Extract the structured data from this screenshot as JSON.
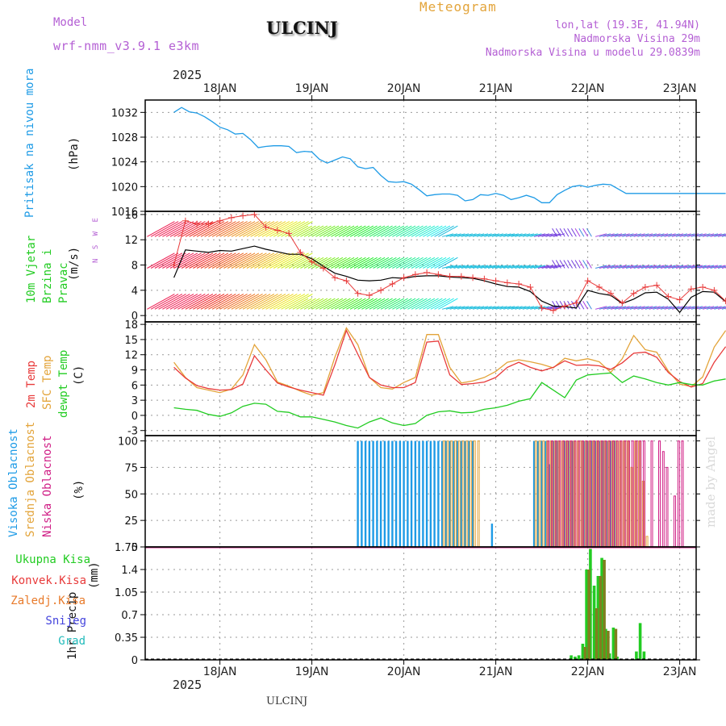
{
  "header": {
    "title": "Meteogram",
    "station": "ULCINJ",
    "model_label": "Model",
    "model_name": "wrf-nmm_v3.9.1 e3km",
    "coords": "lon,lat (19.3E, 41.94N)",
    "elevation": "Nadmorska Visina 29m",
    "model_elevation": "Nadmorska Visina u modelu 29.0839m",
    "year_top": "2025",
    "year_bottom": "2025",
    "footer_station": "ULCINJ",
    "credit": "made by Angel"
  },
  "colors": {
    "pressure": "#1e9be6",
    "temp2m": "#e83a3a",
    "sfc": "#e3a43a",
    "dewpt": "#22cc22",
    "high_cloud": "#1e9be6",
    "mid_cloud": "#e3a43a",
    "low_cloud": "#d01f86",
    "total_precip": "#22cc22",
    "conv_precip": "#e83a3a",
    "grid_precip": "#e87a2a",
    "snow": "#4444dd",
    "graupel": "#22bbbb",
    "model_purple": "#b45fd4",
    "title_gold": "#e3a43a"
  },
  "chart_data": [
    {
      "id": "pressure",
      "type": "line",
      "title": "Pritisak na nivou mora",
      "ylabel": "(hPa)",
      "ylim": [
        1016,
        1034
      ],
      "yticks": [
        1016,
        1020,
        1024,
        1028,
        1032
      ],
      "x": [
        0,
        2,
        4,
        6,
        8,
        10,
        12,
        14,
        16,
        18,
        20,
        22,
        24,
        26,
        28,
        30,
        32,
        34,
        36,
        38,
        40,
        42,
        44,
        46,
        48,
        50,
        52,
        54,
        56,
        58,
        60,
        62,
        64,
        66,
        68,
        70,
        72,
        74,
        76,
        78,
        80,
        82,
        84,
        86,
        88,
        90,
        92,
        94,
        96,
        98,
        100,
        102,
        104,
        106,
        108,
        110,
        112,
        114,
        116,
        118,
        120,
        122,
        124,
        126,
        128,
        130,
        132,
        134,
        136,
        138,
        140,
        142,
        144
      ],
      "series": [
        {
          "name": "MSLP",
          "values": [
            1032.0,
            1032.8,
            1032.1,
            1031.9,
            1031.3,
            1030.5,
            1029.6,
            1029.2,
            1028.5,
            1028.6,
            1027.6,
            1026.3,
            1026.5,
            1026.6,
            1026.6,
            1026.5,
            1025.5,
            1025.7,
            1025.6,
            1024.4,
            1023.8,
            1024.3,
            1024.8,
            1024.5,
            1023.2,
            1022.9,
            1023.1,
            1021.8,
            1020.8,
            1020.7,
            1020.8,
            1020.4,
            1019.5,
            1018.5,
            1018.7,
            1018.8,
            1018.8,
            1018.6,
            1017.7,
            1017.9,
            1018.7,
            1018.6,
            1018.9,
            1018.6,
            1017.9,
            1018.2,
            1018.6,
            1018.2,
            1017.4,
            1017.4,
            1018.7,
            1019.4,
            1020.0,
            1020.2,
            1019.9,
            1020.2,
            1020.4,
            1020.3,
            1019.6,
            1018.9,
            1018.9,
            1018.9,
            1018.9,
            1018.9,
            1018.9,
            1018.9,
            1018.9,
            1018.9,
            1018.9,
            1018.9,
            1018.9,
            1018.9,
            1018.9
          ]
        }
      ]
    },
    {
      "id": "wind",
      "type": "line",
      "title": "10m Vjetar Brzina i Pravac",
      "ylabel": "(m/s)",
      "ylim": [
        -1,
        16.5
      ],
      "yticks": [
        0,
        4,
        8,
        12,
        16
      ],
      "direction_key": "N S W E",
      "barb_rows": [
        1,
        7.5,
        12.5
      ],
      "x": [
        0,
        3,
        6,
        9,
        12,
        15,
        18,
        21,
        24,
        27,
        30,
        33,
        36,
        39,
        42,
        45,
        48,
        51,
        54,
        57,
        60,
        63,
        66,
        69,
        72,
        75,
        78,
        81,
        84,
        87,
        90,
        93,
        96,
        99,
        102,
        105,
        108,
        111,
        114,
        117,
        120,
        123,
        126,
        129,
        132,
        135,
        138,
        141,
        144
      ],
      "series": [
        {
          "name": "Speed",
          "values": [
            6.0,
            10.4,
            10.2,
            10.0,
            10.3,
            10.2,
            10.6,
            11.0,
            10.5,
            10.1,
            9.7,
            9.7,
            9.0,
            7.8,
            6.7,
            6.2,
            5.6,
            5.5,
            5.6,
            6.0,
            5.9,
            6.2,
            6.3,
            6.3,
            6.1,
            6.0,
            5.9,
            5.5,
            5.0,
            4.6,
            4.5,
            3.8,
            2.3,
            1.5,
            1.4,
            1.2,
            4.0,
            3.5,
            3.2,
            1.9,
            2.6,
            3.6,
            3.7,
            2.6,
            0.5,
            2.9,
            3.8,
            3.7,
            2.2
          ]
        },
        {
          "name": "Gust",
          "values": [
            8.0,
            15.0,
            14.5,
            14.5,
            15.0,
            15.5,
            15.8,
            16.0,
            14.0,
            13.5,
            13.0,
            10.0,
            8.5,
            7.5,
            6.0,
            5.5,
            3.5,
            3.2,
            4.0,
            5.0,
            6.0,
            6.5,
            6.8,
            6.5,
            6.2,
            6.2,
            6.0,
            5.8,
            5.5,
            5.2,
            5.0,
            4.5,
            1.2,
            0.8,
            1.5,
            2.0,
            5.5,
            4.5,
            3.5,
            2.0,
            3.5,
            4.5,
            4.8,
            3.0,
            2.5,
            4.2,
            4.5,
            4.0,
            2.3
          ]
        }
      ]
    },
    {
      "id": "temperature",
      "type": "line",
      "title": "2m Temp / SFC Temp / dewpt Temp",
      "ylabel": "(C)",
      "ylim": [
        -4,
        18.5
      ],
      "yticks": [
        -3,
        0,
        3,
        6,
        9,
        12,
        15,
        18
      ],
      "x": [
        0,
        3,
        6,
        9,
        12,
        15,
        18,
        21,
        24,
        27,
        30,
        33,
        36,
        39,
        42,
        45,
        48,
        51,
        54,
        57,
        60,
        63,
        66,
        69,
        72,
        75,
        78,
        81,
        84,
        87,
        90,
        93,
        96,
        99,
        102,
        105,
        108,
        111,
        114,
        117,
        120,
        123,
        126,
        129,
        132,
        135,
        138,
        141,
        144
      ],
      "series": [
        {
          "name": "2m Temp",
          "values": [
            9.5,
            7.4,
            5.9,
            5.3,
            5.0,
            5.1,
            6.2,
            11.8,
            9.0,
            6.4,
            5.6,
            5.0,
            4.5,
            4.0,
            10.0,
            16.8,
            12.1,
            7.5,
            6.0,
            5.5,
            5.5,
            6.5,
            14.5,
            14.7,
            8.0,
            6.1,
            6.3,
            6.6,
            7.5,
            9.5,
            10.5,
            9.5,
            8.8,
            9.5,
            10.8,
            9.9,
            10.0,
            9.8,
            9.1,
            10.4,
            12.3,
            12.5,
            11.5,
            8.5,
            6.7,
            5.6,
            6.3,
            10.5,
            13.6
          ]
        },
        {
          "name": "SFC Temp",
          "values": [
            10.5,
            7.5,
            5.5,
            5.0,
            4.5,
            5.2,
            8.0,
            14.0,
            11.0,
            6.6,
            5.8,
            4.8,
            4.0,
            4.5,
            11.5,
            17.3,
            14.0,
            7.5,
            5.5,
            5.2,
            6.5,
            7.5,
            16.0,
            16.0,
            9.5,
            6.4,
            6.8,
            7.5,
            8.7,
            10.5,
            11.0,
            10.6,
            10.1,
            9.4,
            11.3,
            10.8,
            11.2,
            10.6,
            8.5,
            11.2,
            15.8,
            13.0,
            12.5,
            8.8,
            6.2,
            5.7,
            7.6,
            13.5,
            16.8
          ]
        },
        {
          "name": "dewpt Temp",
          "values": [
            1.5,
            1.2,
            1.0,
            0.2,
            -0.2,
            0.5,
            1.8,
            2.4,
            2.2,
            0.8,
            0.6,
            -0.3,
            -0.3,
            -0.8,
            -1.3,
            -2.0,
            -2.5,
            -1.3,
            -0.5,
            -1.5,
            -2.0,
            -1.6,
            0.0,
            0.7,
            0.9,
            0.5,
            0.6,
            1.2,
            1.5,
            2.0,
            2.8,
            3.3,
            6.5,
            5.0,
            3.5,
            7.0,
            8.0,
            8.2,
            8.4,
            6.5,
            7.8,
            7.2,
            6.5,
            6.0,
            6.5,
            6.1,
            6.0,
            6.8,
            7.2
          ]
        }
      ]
    },
    {
      "id": "clouds",
      "type": "bar",
      "title": "Visoka Oblacnost / Srednja Oblacnost / Niska Oblacnost",
      "ylabel": "(%)",
      "ylim": [
        0,
        105
      ],
      "yticks": [
        0,
        25,
        50,
        75,
        100
      ],
      "series": [
        {
          "name": "Visoka Oblacnost",
          "hours": [
            48,
            49,
            50,
            51,
            52,
            53,
            54,
            55,
            56,
            57,
            58,
            59,
            60,
            61,
            62,
            63,
            64,
            65,
            66,
            67,
            68,
            69,
            70,
            71,
            72,
            73,
            74,
            75,
            76,
            77,
            78,
            83,
            94,
            95,
            96,
            97,
            98,
            99,
            100,
            102,
            103,
            104,
            107,
            108,
            109,
            110,
            111,
            112,
            113,
            114,
            115
          ],
          "values": [
            100,
            100,
            100,
            100,
            100,
            100,
            100,
            100,
            100,
            100,
            100,
            100,
            100,
            100,
            100,
            100,
            100,
            100,
            100,
            100,
            100,
            100,
            100,
            100,
            100,
            100,
            100,
            100,
            100,
            100,
            100,
            22,
            100,
            100,
            100,
            100,
            78,
            100,
            100,
            100,
            100,
            100,
            100,
            100,
            100,
            100,
            100,
            100,
            100,
            100,
            100
          ]
        },
        {
          "name": "Srednja Oblacnost",
          "hours": [
            70,
            71,
            72,
            73,
            74,
            75,
            76,
            77,
            78,
            79,
            94,
            95,
            96,
            97,
            98,
            99,
            100,
            101,
            102,
            103,
            104,
            105,
            106,
            107,
            108,
            109,
            110,
            111,
            112,
            113,
            114,
            115,
            116,
            117,
            118,
            119,
            120,
            121,
            122,
            123
          ],
          "values": [
            100,
            100,
            100,
            100,
            100,
            100,
            100,
            100,
            100,
            100,
            100,
            100,
            100,
            100,
            100,
            100,
            100,
            100,
            100,
            100,
            100,
            100,
            100,
            100,
            100,
            100,
            100,
            100,
            100,
            100,
            100,
            100,
            100,
            100,
            100,
            75,
            100,
            100,
            62,
            10
          ]
        },
        {
          "name": "Niska Oblacnost",
          "hours": [
            97,
            98,
            99,
            100,
            101,
            102,
            103,
            104,
            105,
            106,
            107,
            108,
            109,
            110,
            111,
            112,
            113,
            114,
            115,
            116,
            117,
            118,
            119,
            120,
            121,
            122,
            124,
            126,
            127,
            128,
            130,
            131,
            132
          ],
          "values": [
            100,
            100,
            100,
            100,
            100,
            100,
            100,
            100,
            100,
            100,
            100,
            100,
            100,
            100,
            100,
            100,
            100,
            100,
            100,
            100,
            100,
            100,
            100,
            100,
            100,
            100,
            100,
            100,
            90,
            75,
            48,
            100,
            100
          ]
        }
      ]
    },
    {
      "id": "precip",
      "type": "bar",
      "title": "1hr Precip",
      "ylabel": "(mm)",
      "ylim": [
        0,
        1.75
      ],
      "yticks": [
        0,
        0.35,
        0.7,
        1.05,
        1.4,
        1.75
      ],
      "yticklabels": [
        "0",
        "0.35",
        "0.7",
        "1.05",
        "1.4",
        "1.75"
      ],
      "legend": [
        "Ukupna Kisa",
        "Konvek.Kisa",
        "Zaledj.Kisa",
        "Snijeg",
        "Grad"
      ],
      "series": [
        {
          "name": "Ukupna Kisa",
          "hours": [
            104,
            105,
            106,
            107,
            108,
            109,
            110,
            111,
            112,
            113,
            114,
            115,
            116,
            121,
            122,
            123
          ],
          "values": [
            0.07,
            0.05,
            0.07,
            0.25,
            1.4,
            1.72,
            1.15,
            1.3,
            1.58,
            0.48,
            0.1,
            0.5,
            0.05,
            0.13,
            0.57,
            0.13
          ]
        },
        {
          "name": "Konvek.Kisa",
          "hours": [
            107,
            108,
            110,
            111,
            112,
            113,
            115
          ],
          "values": [
            0.2,
            1.4,
            0.8,
            1.3,
            1.55,
            0.45,
            0.48
          ]
        }
      ]
    }
  ],
  "x_axis": {
    "day_labels": [
      "18JAN",
      "19JAN",
      "20JAN",
      "21JAN",
      "22JAN",
      "23JAN"
    ]
  }
}
